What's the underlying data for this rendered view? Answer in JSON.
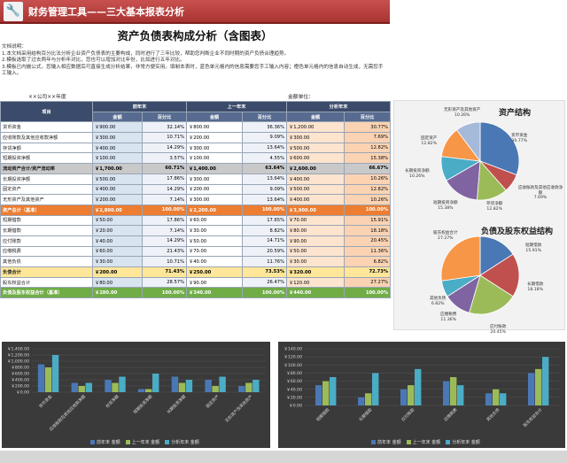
{
  "app": {
    "title": "财务管理工具——三大基本报表分析"
  },
  "report": {
    "title": "资产负债表构成分析（含图表）",
    "notes": [
      "文档说明：",
      "1.本文档采用结构百分比法分析企业资产负债表的主要构成，同时进行了三年比较，帮助您判断企业不同时期的资产负债合理趋势。",
      "2.模板选取了过去两年与分析年对比，您也可以增加对比年份，比如进行五年对比。",
      "3.模板已内嵌公式，您输入相应数据后可直接生成分析结果，非常方便实用。填制本表时，蓝色单元格内的信息需要您手工输入内容；橙色单元格内的信息自动生成，无需您手工输入。"
    ],
    "company": "××公司××年度",
    "unit": "金额单位：",
    "header": {
      "item": "项目",
      "p1": "前年末",
      "p2": "上一年末",
      "p3": "分析年末",
      "amt": "金额",
      "pct": "百分比"
    }
  },
  "rows": [
    {
      "label": "货币资金",
      "v": [
        "￥900.00",
        "32.14%",
        "￥800.00",
        "36.36%",
        "￥1,200.00",
        "30.77%"
      ],
      "style": ""
    },
    {
      "label": "应收账款及其他应收款净额",
      "v": [
        "￥300.00",
        "10.71%",
        "￥200.00",
        "9.09%",
        "￥300.00",
        "7.69%"
      ],
      "style": ""
    },
    {
      "label": "存货净额",
      "v": [
        "￥400.00",
        "14.29%",
        "￥300.00",
        "13.64%",
        "￥500.00",
        "12.82%"
      ],
      "style": ""
    },
    {
      "label": "短期投资净额",
      "v": [
        "￥100.00",
        "3.57%",
        "￥100.00",
        "4.55%",
        "￥600.00",
        "15.38%"
      ],
      "style": ""
    },
    {
      "label": "流动资产合计/资产流动率",
      "v": [
        "￥1,700.00",
        "60.71%",
        "￥1,400.00",
        "63.64%",
        "￥2,600.00",
        "66.67%"
      ],
      "style": "sub-gray"
    },
    {
      "label": "长期投资净额",
      "v": [
        "￥500.00",
        "17.86%",
        "￥300.00",
        "13.64%",
        "￥400.00",
        "10.26%"
      ],
      "style": ""
    },
    {
      "label": "固定资产",
      "v": [
        "￥400.00",
        "14.29%",
        "￥200.00",
        "9.09%",
        "￥500.00",
        "12.82%"
      ],
      "style": ""
    },
    {
      "label": "无形资产及其他资产",
      "v": [
        "￥200.00",
        "7.14%",
        "￥300.00",
        "13.64%",
        "￥400.00",
        "10.26%"
      ],
      "style": ""
    },
    {
      "label": "资产总计（基准）",
      "v": [
        "￥2,800.00",
        "100.00%",
        "￥2,200.00",
        "100.00%",
        "￥3,900.00",
        "100.00%"
      ],
      "style": "orange"
    },
    {
      "label": "短期借款",
      "v": [
        "￥50.00",
        "17.86%",
        "￥60.00",
        "17.65%",
        "￥70.00",
        "15.91%"
      ],
      "style": ""
    },
    {
      "label": "长期借款",
      "v": [
        "￥20.00",
        "7.14%",
        "￥30.00",
        "8.82%",
        "￥80.00",
        "18.18%"
      ],
      "style": ""
    },
    {
      "label": "应付账款",
      "v": [
        "￥40.00",
        "14.29%",
        "￥50.00",
        "14.71%",
        "￥90.00",
        "20.45%"
      ],
      "style": ""
    },
    {
      "label": "应缴税费",
      "v": [
        "￥60.00",
        "21.43%",
        "￥70.00",
        "20.59%",
        "￥50.00",
        "11.36%"
      ],
      "style": ""
    },
    {
      "label": "其他负债",
      "v": [
        "￥30.00",
        "10.71%",
        "￥40.00",
        "11.76%",
        "￥30.00",
        "6.82%"
      ],
      "style": ""
    },
    {
      "label": "负债合计",
      "v": [
        "￥200.00",
        "71.43%",
        "￥250.00",
        "73.53%",
        "￥320.00",
        "72.73%"
      ],
      "style": "yellow"
    },
    {
      "label": "股东权益合计",
      "v": [
        "￥80.00",
        "28.57%",
        "￥90.00",
        "26.47%",
        "￥120.00",
        "27.27%"
      ],
      "style": ""
    },
    {
      "label": "负债及股东权益合计（基准）",
      "v": [
        "￥280.00",
        "100.00%",
        "￥340.00",
        "100.00%",
        "￥440.00",
        "100.00%"
      ],
      "style": "green"
    }
  ],
  "pie1": {
    "title": "资产结构",
    "slices": [
      {
        "name": "货币资金",
        "value": 30.77,
        "label": "30.77%",
        "color": "#4a78b5"
      },
      {
        "name": "应收账款及其他应收款净额",
        "value": 7.69,
        "label": "7.69%",
        "color": "#c0504d"
      },
      {
        "name": "存货净额",
        "value": 12.82,
        "label": "12.82%",
        "color": "#9bbb59"
      },
      {
        "name": "短期投资净额",
        "value": 15.38,
        "label": "15.38%",
        "color": "#8064a2"
      },
      {
        "name": "长期投资净额",
        "value": 10.26,
        "label": "10.26%",
        "color": "#4bacc6"
      },
      {
        "name": "固定资产",
        "value": 12.82,
        "label": "12.82%",
        "color": "#f79646"
      },
      {
        "name": "无形资产及其他资产",
        "value": 10.26,
        "label": "10.26%",
        "color": "#a5b9d8"
      }
    ]
  },
  "pie2": {
    "title": "负债及股东权益结构",
    "slices": [
      {
        "name": "短期借款",
        "value": 15.91,
        "label": "15.91%",
        "color": "#4a78b5"
      },
      {
        "name": "长期借款",
        "value": 18.18,
        "label": "18.18%",
        "color": "#c0504d"
      },
      {
        "name": "应付账款",
        "value": 20.45,
        "label": "20.45%",
        "color": "#9bbb59"
      },
      {
        "name": "应缴税费",
        "value": 11.36,
        "label": "11.36%",
        "color": "#8064a2"
      },
      {
        "name": "其他负债",
        "value": 6.82,
        "label": "6.82%",
        "color": "#4bacc6"
      },
      {
        "name": "股东权益合计",
        "value": 27.27,
        "label": "27.27%",
        "color": "#f79646"
      }
    ]
  },
  "bars1": {
    "yticks": [
      "￥1,400.00",
      "￥1,200.00",
      "￥1,000.00",
      "￥800.00",
      "￥600.00",
      "￥400.00",
      "￥200.00",
      "￥0.00"
    ],
    "ymax": 1400,
    "categories": [
      "货币资金",
      "应收账款及其他应收款净额",
      "存货净额",
      "短期投资净额",
      "长期投资净额",
      "固定资产",
      "无形资产及其他资产"
    ],
    "series": [
      {
        "name": "前年末 金额",
        "color": "#4a78b5",
        "values": [
          900,
          300,
          400,
          100,
          500,
          400,
          200
        ]
      },
      {
        "name": "上一年末 金额",
        "color": "#9bbb59",
        "values": [
          800,
          200,
          300,
          100,
          300,
          200,
          300
        ]
      },
      {
        "name": "分析年末 金额",
        "color": "#4bacc6",
        "values": [
          1200,
          300,
          500,
          600,
          400,
          500,
          400
        ]
      }
    ]
  },
  "bars2": {
    "yticks": [
      "￥140.00",
      "￥120.00",
      "￥100.00",
      "￥80.00",
      "￥60.00",
      "￥40.00",
      "￥20.00",
      "￥0.00"
    ],
    "ymax": 140,
    "categories": [
      "短期借款",
      "长期借款",
      "应付账款",
      "应缴税费",
      "其他负债",
      "股东权益合计"
    ],
    "series": [
      {
        "name": "前年末 金额",
        "color": "#4a78b5",
        "values": [
          50,
          20,
          40,
          60,
          30,
          80
        ]
      },
      {
        "name": "上一年末 金额",
        "color": "#9bbb59",
        "values": [
          60,
          30,
          50,
          70,
          40,
          90
        ]
      },
      {
        "name": "分析年末 金额",
        "color": "#4bacc6",
        "values": [
          70,
          80,
          90,
          50,
          30,
          120
        ]
      }
    ]
  }
}
